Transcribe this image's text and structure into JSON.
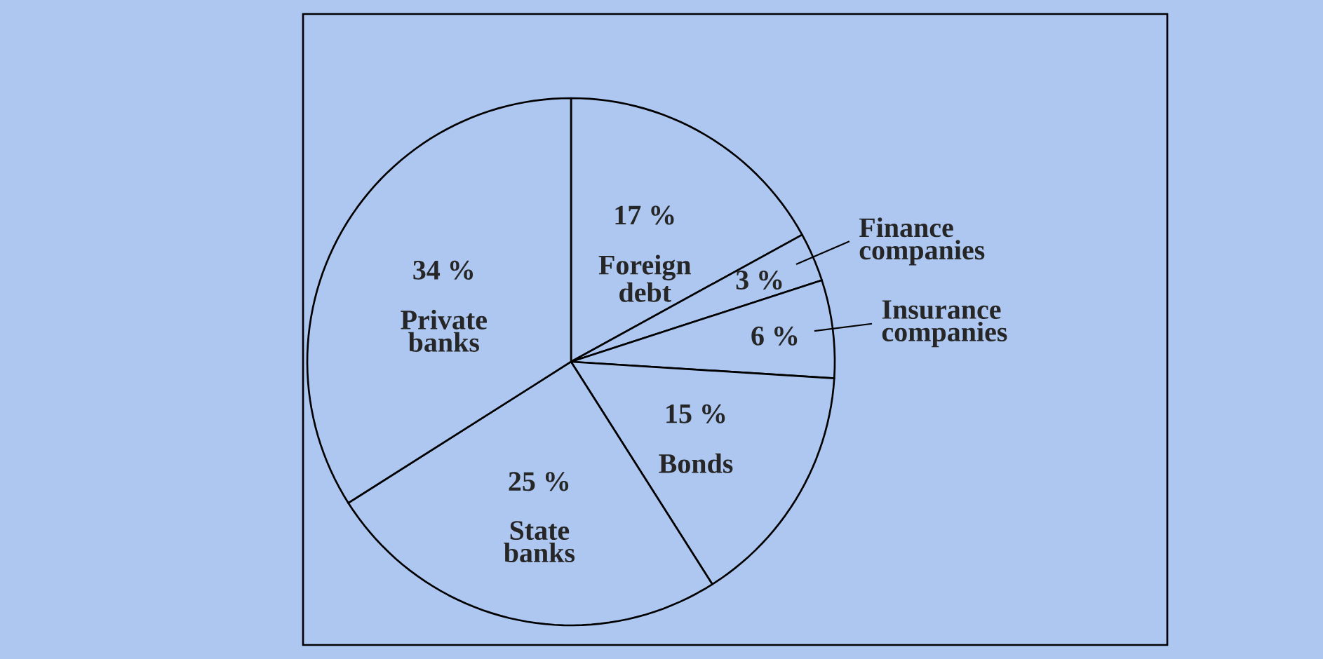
{
  "chart_data": {
    "type": "pie",
    "categories": [
      "Foreign debt",
      "Finance companies",
      "Insurance companies",
      "Bonds",
      "State banks",
      "Private banks"
    ],
    "values": [
      17,
      3,
      6,
      15,
      25,
      34
    ],
    "value_labels": [
      "17 %",
      "3 %",
      "6 %",
      "15 %",
      "25 %",
      "34 %"
    ],
    "colors": [
      "#adc7f1",
      "#adc7f1",
      "#adc7f1",
      "#adc7f1",
      "#adc7f1",
      "#adc7f1"
    ]
  }
}
